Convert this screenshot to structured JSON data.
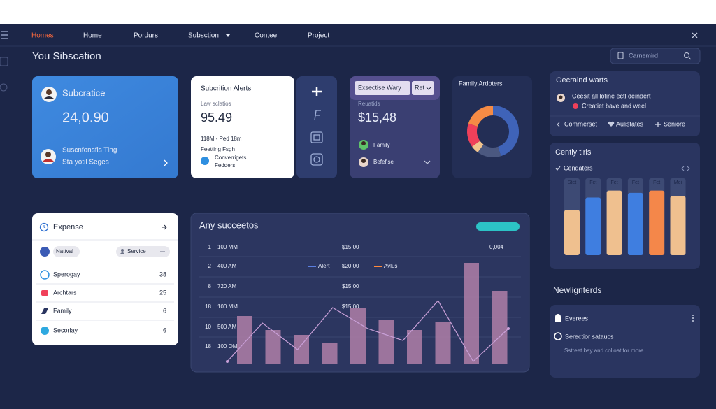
{
  "nav": {
    "items": [
      "Homes",
      "Home",
      "Pordurs",
      "Subsction",
      "Contee",
      "Project"
    ]
  },
  "header": {
    "title": "You Sibscation",
    "search": "Carnemird"
  },
  "subscription_card": {
    "title": "Subcratice",
    "value": "24,0.90",
    "line1": "Suscnfonsfis Ting",
    "line2": "Sta yotil Seges"
  },
  "alerts_card": {
    "title": "Subcrition Alerts",
    "label": "Law sclatios",
    "value": "95.49",
    "range": "118M - Ped 18m",
    "note": "Feetting Fsgh",
    "contact": [
      "Converrigets",
      "Fedders"
    ]
  },
  "wary_card": {
    "select": "Exsectise Wary",
    "filter": "Ret",
    "label": "Reuatids",
    "value": "$15,48",
    "people": [
      "Family",
      "Befefise"
    ]
  },
  "family_card": {
    "title": "Family Ardoters",
    "donut": [
      {
        "value": 45,
        "color": "#3f63b8"
      },
      {
        "value": 15,
        "color": "#4b5880"
      },
      {
        "value": 5,
        "color": "#f2c58e"
      },
      {
        "value": 15,
        "color": "#f0405a"
      },
      {
        "value": 20,
        "color": "#f58b45"
      }
    ]
  },
  "alerts_panel": {
    "title": "Gecraind warts",
    "items": [
      "Ceesit all lofine ectl deindert",
      "Creatiet bave and weel"
    ],
    "actions": [
      "Comrnerset",
      "Aulistates",
      "Seniore"
    ]
  },
  "trends_card": {
    "title": "Cently tirls",
    "filter": "Cenqaters",
    "ylim": [
      0,
      100
    ],
    "bars": [
      {
        "label": "Stet",
        "value": 59,
        "color": "#efc08f"
      },
      {
        "label": "Fet",
        "value": 75,
        "color": "#3f7ee0"
      },
      {
        "label": "Fet",
        "value": 84,
        "color": "#efc08f"
      },
      {
        "label": "Fet",
        "value": 81,
        "color": "#3f7ee0"
      },
      {
        "label": "Fet",
        "value": 84,
        "color": "#f4874a"
      },
      {
        "label": "Mei",
        "value": 77,
        "color": "#efc08f"
      }
    ]
  },
  "news": {
    "title": "Newlignterds",
    "items": [
      "Everees",
      "Serectior sataucs"
    ],
    "note": "Sstreet bay and colloat for more"
  },
  "expense_card": {
    "title": "Expense",
    "filters": [
      "Nattval",
      "Service"
    ],
    "rows": [
      {
        "name": "Sperogay",
        "value": 38
      },
      {
        "name": "Archtars",
        "value": 25
      },
      {
        "name": "Family",
        "value": 6
      },
      {
        "name": "Secorlay",
        "value": 6
      }
    ]
  },
  "activity_card": {
    "title": "Any succeetos",
    "rows": [
      {
        "index": "1",
        "time": "100 MM",
        "amount": "$15,00",
        "extra": "0,004"
      },
      {
        "index": "2",
        "time": "400 AM",
        "amount": "$20,00"
      },
      {
        "index": "8",
        "time": "720 AM",
        "amount": "$15,00"
      },
      {
        "index": "18",
        "time": "100 MM",
        "amount": "$15,00"
      },
      {
        "index": "10",
        "time": "500 AM"
      },
      {
        "index": "18",
        "time": "100 OM"
      }
    ],
    "legend": [
      {
        "name": "Alert",
        "color": "#5b7fe0"
      },
      {
        "name": "Avlus",
        "color": "#ff8a3d"
      }
    ],
    "chart": {
      "ylim": [
        0,
        180
      ],
      "bar_color": "#b07fa8",
      "line_color": "#c9a0d8",
      "bars": [
        68,
        48,
        41,
        30,
        80,
        62,
        48,
        59,
        144,
        104
      ],
      "line": [
        3,
        58,
        20,
        80,
        50,
        33,
        90,
        3,
        50
      ]
    }
  }
}
